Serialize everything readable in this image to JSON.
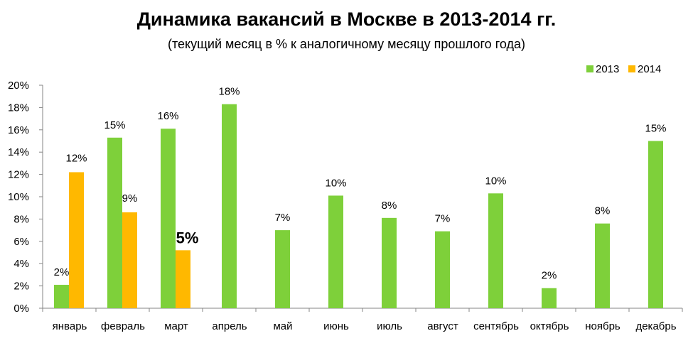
{
  "title": "Динамика вакансий в Москве в 2013-2014 гг.",
  "subtitle": "(текущий месяц в % к аналогичному месяцу прошлого года)",
  "colors": {
    "2013": "#7ed03a",
    "2014": "#ffb800"
  },
  "chart_data": {
    "type": "bar",
    "categories": [
      "январь",
      "февраль",
      "март",
      "апрель",
      "май",
      "июнь",
      "июль",
      "август",
      "сентябрь",
      "октябрь",
      "ноябрь",
      "декабрь"
    ],
    "series": [
      {
        "name": "2013",
        "values": [
          2.1,
          15.3,
          16.1,
          18.3,
          7.0,
          10.1,
          8.1,
          6.9,
          10.3,
          1.8,
          7.6,
          15.0
        ],
        "labels": [
          "2%",
          "15%",
          "16%",
          "18%",
          "7%",
          "10%",
          "8%",
          "7%",
          "10%",
          "2%",
          "8%",
          "15%"
        ]
      },
      {
        "name": "2014",
        "values": [
          12.2,
          8.6,
          5.2,
          null,
          null,
          null,
          null,
          null,
          null,
          null,
          null,
          null
        ],
        "labels": [
          "12%",
          "9%",
          "5%",
          null,
          null,
          null,
          null,
          null,
          null,
          null,
          null,
          null
        ]
      }
    ],
    "ylim": [
      0,
      20
    ],
    "yticks": [
      "0%",
      "2%",
      "4%",
      "6%",
      "8%",
      "10%",
      "12%",
      "14%",
      "16%",
      "18%",
      "20%"
    ],
    "legend_position": "top-right",
    "grid": false
  }
}
